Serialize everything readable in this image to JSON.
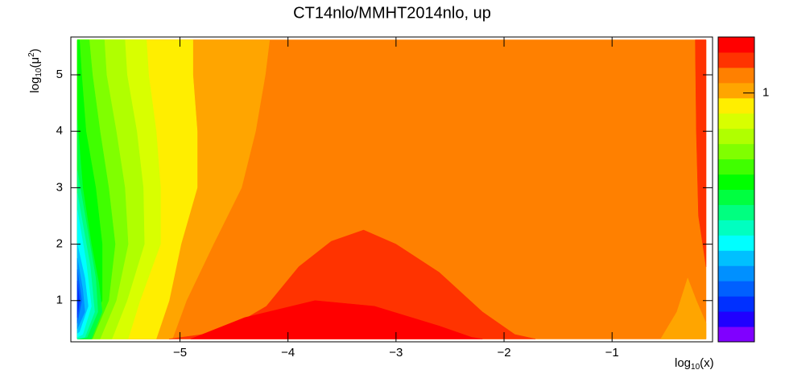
{
  "chart_data": {
    "type": "contour",
    "title": "CT14nlo/MMHT2014nlo, up",
    "x_label": [
      "log",
      "10",
      "(x)"
    ],
    "y_label": [
      "log",
      "10",
      "(μ",
      "2",
      ")"
    ],
    "xlim": [
      -6.01,
      -0.07
    ],
    "ylim": [
      0.27,
      5.67
    ],
    "xticks": [
      {
        "value": -5,
        "label": "−5"
      },
      {
        "value": -4,
        "label": "−4"
      },
      {
        "value": -3,
        "label": "−3"
      },
      {
        "value": -2,
        "label": "−2"
      },
      {
        "value": -1,
        "label": "−1"
      }
    ],
    "yticks": [
      1,
      2,
      3,
      4,
      5
    ],
    "zlim": [
      0.6,
      1.09
    ],
    "zticks": [
      1
    ],
    "palette": [
      "#8000ff",
      "#2000ff",
      "#0030ff",
      "#0060ff",
      "#0090ff",
      "#00c0ff",
      "#00ffff",
      "#00ffc0",
      "#00ff80",
      "#00ff40",
      "#00ff00",
      "#40ff00",
      "#80ff00",
      "#b0ff00",
      "#d8ff00",
      "#ffee00",
      "#ffa500",
      "#ff8000",
      "#ff3300",
      "#ff0000"
    ],
    "regions": [
      {
        "z": 1.03,
        "x": [
          -5.95,
          -0.13,
          -0.13,
          -5.95
        ],
        "y": [
          5.62,
          5.62,
          0.32,
          0.32
        ]
      },
      {
        "z": 1.004,
        "x": [
          -5.95,
          -4.17,
          -4.21,
          -4.3,
          -4.43,
          -4.69,
          -4.94,
          -5.07,
          -5.95
        ],
        "y": [
          5.62,
          5.62,
          5,
          4,
          3,
          2,
          1,
          0.32,
          0.32
        ]
      },
      {
        "z": 1.004,
        "x": [
          -0.55,
          -0.4,
          -0.3,
          -0.22,
          -0.13,
          -0.13
        ],
        "y": [
          0.32,
          0.8,
          1.4,
          1.0,
          0.6,
          0.32
        ]
      },
      {
        "z": 0.98,
        "x": [
          -5.95,
          -4.88,
          -4.88,
          -4.84,
          -4.84,
          -4.99,
          -5.1,
          -5.22,
          -5.95
        ],
        "y": [
          5.62,
          5.62,
          5,
          4,
          3,
          2,
          1,
          0.32,
          0.32
        ]
      },
      {
        "z": 0.955,
        "x": [
          -5.95,
          -5.31,
          -5.29,
          -5.22,
          -5.18,
          -5.18,
          -5.37,
          -5.48,
          -5.95
        ],
        "y": [
          5.62,
          5.62,
          5,
          4,
          3,
          2,
          1,
          0.32,
          0.32
        ]
      },
      {
        "z": 0.931,
        "x": [
          -5.95,
          -5.51,
          -5.49,
          -5.4,
          -5.34,
          -5.33,
          -5.49,
          -5.63,
          -5.95
        ],
        "y": [
          5.62,
          5.62,
          5,
          4,
          3,
          2,
          1,
          0.32,
          0.32
        ]
      },
      {
        "z": 0.906,
        "x": [
          -5.95,
          -5.7,
          -5.68,
          -5.59,
          -5.51,
          -5.48,
          -5.59,
          -5.74,
          -5.95
        ],
        "y": [
          5.62,
          5.62,
          5,
          4,
          3,
          2,
          1,
          0.32,
          0.32
        ]
      },
      {
        "z": 0.882,
        "x": [
          -5.95,
          -5.84,
          -5.81,
          -5.74,
          -5.66,
          -5.6,
          -5.66,
          -5.81,
          -5.95
        ],
        "y": [
          5.62,
          5.62,
          5,
          4,
          3,
          2,
          1,
          0.32,
          0.32
        ]
      },
      {
        "z": 0.857,
        "x": [
          -5.95,
          -5.93,
          -5.91,
          -5.87,
          -5.78,
          -5.72,
          -5.72,
          -5.89,
          -5.95
        ],
        "y": [
          5.62,
          5.62,
          5,
          4,
          3,
          2,
          1,
          0.32,
          0.32
        ]
      },
      {
        "z": 0.833,
        "x": [
          -5.95,
          -5.9,
          -5.82,
          -5.75,
          -5.72,
          -5.82,
          -5.95
        ],
        "y": [
          4.2,
          3,
          2,
          1.3,
          0.8,
          0.32,
          0.32
        ]
      },
      {
        "z": 0.808,
        "x": [
          -5.95,
          -5.86,
          -5.78,
          -5.76,
          -5.86,
          -5.95
        ],
        "y": [
          3.3,
          2.3,
          1.4,
          0.8,
          0.35,
          0.32
        ]
      },
      {
        "z": 0.784,
        "x": [
          -5.95,
          -5.83,
          -5.79,
          -5.88,
          -5.95
        ],
        "y": [
          2.9,
          1.6,
          0.8,
          0.35,
          0.32
        ]
      },
      {
        "z": 0.759,
        "x": [
          -5.95,
          -5.87,
          -5.82,
          -5.9,
          -5.95
        ],
        "y": [
          2.6,
          1.7,
          0.9,
          0.4,
          0.35
        ]
      },
      {
        "z": 0.735,
        "x": [
          -5.95,
          -5.88,
          -5.85,
          -5.93,
          -5.95
        ],
        "y": [
          2.0,
          1.4,
          0.9,
          0.45,
          0.42
        ]
      },
      {
        "z": 0.71,
        "x": [
          -5.95,
          -5.9,
          -5.88,
          -5.95
        ],
        "y": [
          1.75,
          1.2,
          0.8,
          0.5
        ]
      },
      {
        "z": 0.686,
        "x": [
          -5.95,
          -5.91,
          -5.95
        ],
        "y": [
          1.55,
          1.0,
          0.6
        ]
      },
      {
        "z": 0.661,
        "x": [
          -5.95,
          -5.93,
          -5.95
        ],
        "y": [
          1.35,
          1.0,
          0.7
        ]
      },
      {
        "z": 1.053,
        "x": [
          -5.1,
          -4.6,
          -4.2,
          -3.9,
          -3.6,
          -3.3,
          -3.0,
          -2.6,
          -2.2,
          -1.9,
          -1.71
        ],
        "y": [
          0.32,
          0.45,
          0.9,
          1.6,
          2.05,
          2.25,
          2.0,
          1.5,
          0.8,
          0.4,
          0.32
        ]
      },
      {
        "z": 1.053,
        "x": [
          -0.23,
          -0.13,
          -0.13,
          -0.2,
          -0.22
        ],
        "y": [
          5.62,
          5.62,
          1.6,
          2.5,
          4
        ]
      },
      {
        "z": 1.077,
        "x": [
          -4.9,
          -4.4,
          -3.75,
          -3.2,
          -2.6,
          -2.3,
          -2.2
        ],
        "y": [
          0.32,
          0.7,
          1.0,
          0.9,
          0.55,
          0.35,
          0.32
        ]
      }
    ]
  }
}
